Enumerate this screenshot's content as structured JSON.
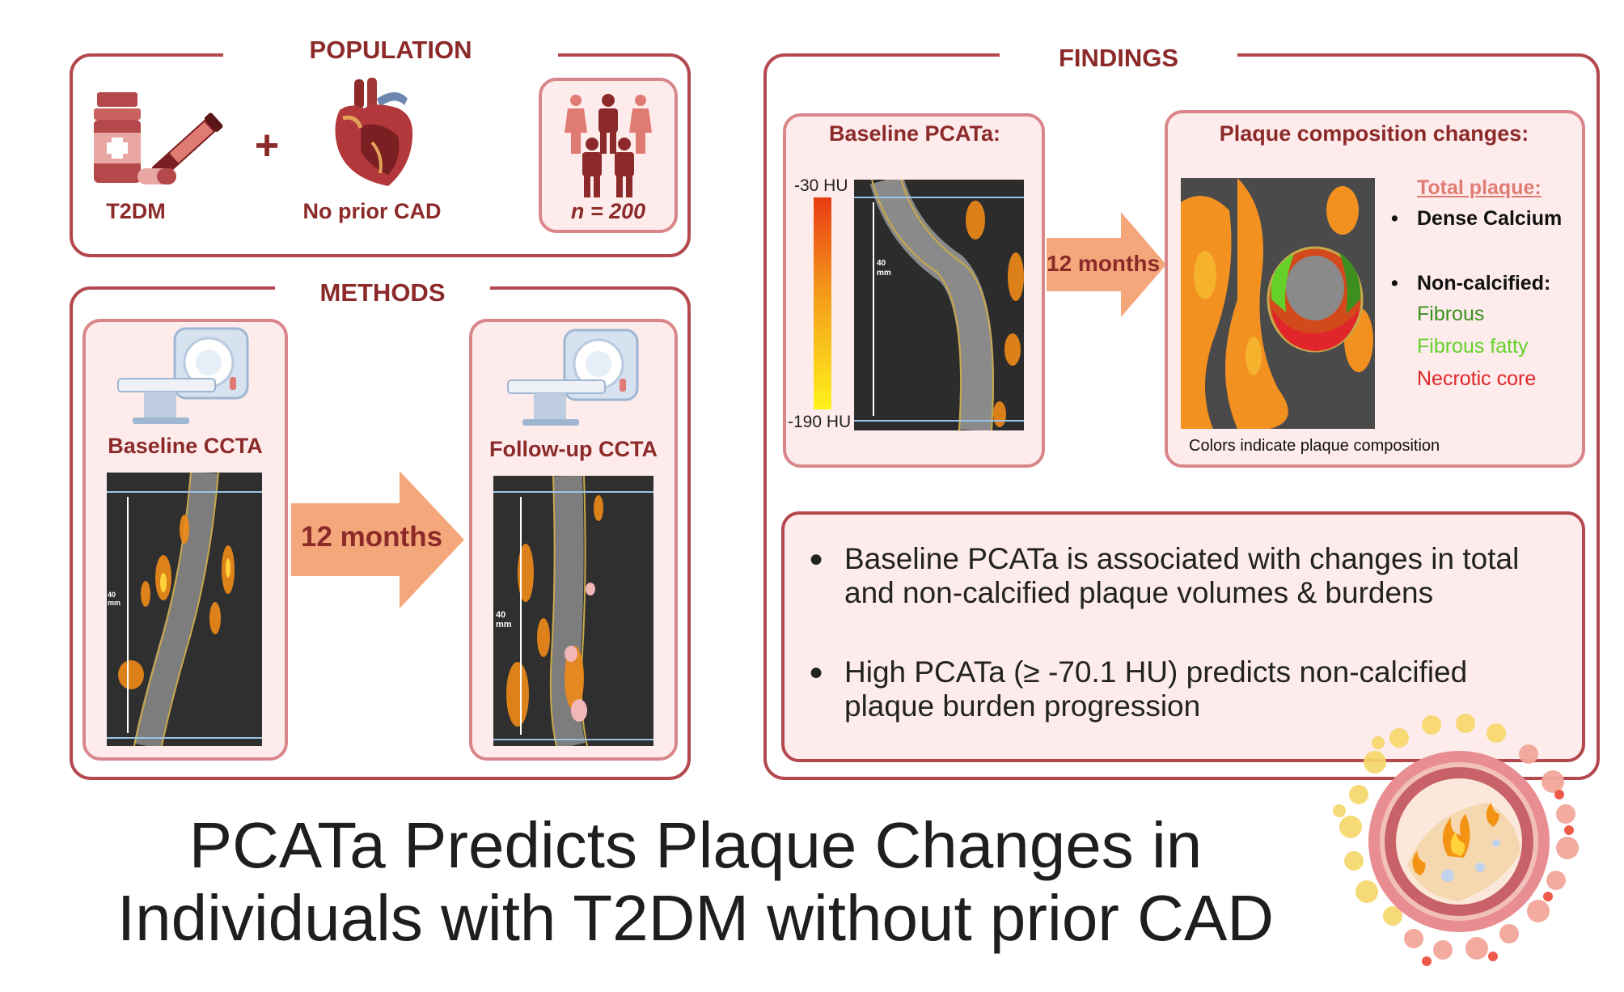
{
  "population": {
    "header": "POPULATION",
    "t2dm_label": "T2DM",
    "plus": "+",
    "no_cad_label": "No prior CAD",
    "n_label": "n = 200"
  },
  "methods": {
    "header": "METHODS",
    "baseline_label": "Baseline CCTA",
    "followup_label": "Follow-up CCTA",
    "interval": "12 months",
    "scale_label": "40 mm"
  },
  "findings": {
    "header": "FINDINGS",
    "baseline_title": "Baseline PCATa:",
    "scale_top": "-30 HU",
    "scale_bottom": "-190 HU",
    "interval": "12 months",
    "scale_label": "40 mm",
    "plaque_title": "Plaque composition changes:",
    "total_plaque": "Total plaque:",
    "dense_calcium": "Dense Calcium",
    "non_calcified": "Non-calcified:",
    "fibrous": "Fibrous",
    "fibrous_fatty": "Fibrous fatty",
    "necrotic_core": "Necrotic core",
    "caption": "Colors indicate plaque composition",
    "bullet1_line1": "Baseline PCATa is associated with changes in total",
    "bullet1_line2": "and non-calcified plaque volumes & burdens",
    "bullet2_line1": "High PCATa (≥ -70.1 HU) predicts non-calcified",
    "bullet2_line2": "plaque burden progression"
  },
  "title": {
    "line1": "PCATa Predicts Plaque Changes in",
    "line2": "Individuals with T2DM without prior CAD"
  },
  "colors": {
    "frame": "#b3484f",
    "panel_border": "#d9868b",
    "panel_fill": "#fdeceb",
    "header_text": "#8c2a2a",
    "arrow": "#f5a77c",
    "fibrous": "#3c8f1e",
    "fibrous_fatty": "#63d12a",
    "necrotic": "#e0262a"
  }
}
